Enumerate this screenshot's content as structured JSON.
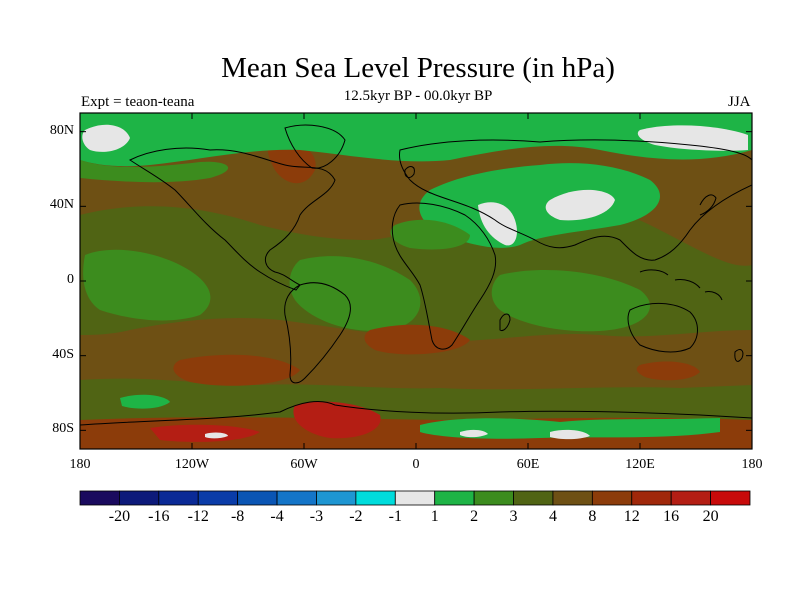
{
  "title": "Mean Sea Level Pressure (in hPa)",
  "subtitle": "12.5kyr BP - 00.0kyr BP",
  "left_label": "Expt = teaon-teana",
  "right_label": "JJA",
  "lat_ticks": [
    {
      "label": "80N",
      "lat": 80
    },
    {
      "label": "40N",
      "lat": 40
    },
    {
      "label": "0",
      "lat": 0
    },
    {
      "label": "40S",
      "lat": -40
    },
    {
      "label": "80S",
      "lat": -80
    }
  ],
  "lon_ticks": [
    {
      "label": "180",
      "lon": -180
    },
    {
      "label": "120W",
      "lon": -120
    },
    {
      "label": "60W",
      "lon": -60
    },
    {
      "label": "0",
      "lon": 0
    },
    {
      "label": "60E",
      "lon": 60
    },
    {
      "label": "120E",
      "lon": 120
    },
    {
      "label": "180",
      "lon": 180
    }
  ],
  "colorbar": {
    "colors": [
      "#1a0a5e",
      "#0d1a7a",
      "#0a2a96",
      "#0a3ca8",
      "#0a55b4",
      "#1475c8",
      "#1e96d2",
      "#00dcdc",
      "#e6e6e6",
      "#1eb446",
      "#3c8c1e",
      "#506414",
      "#6e5014",
      "#8c3c0a",
      "#a0280a",
      "#b41e14",
      "#c80a0a"
    ],
    "labels": [
      "-20",
      "-16",
      "-12",
      "-8",
      "-4",
      "-3",
      "-2",
      "-1",
      "1",
      "2",
      "3",
      "4",
      "8",
      "12",
      "16",
      "20"
    ]
  },
  "map_colors": {
    "base": "#6e5014",
    "light_green": "#1eb446",
    "mid_green": "#3c8c1e",
    "olive": "#506414",
    "white": "#e6e6e6",
    "rust": "#8c3c0a",
    "red": "#b41e14",
    "coast": "#000000"
  }
}
